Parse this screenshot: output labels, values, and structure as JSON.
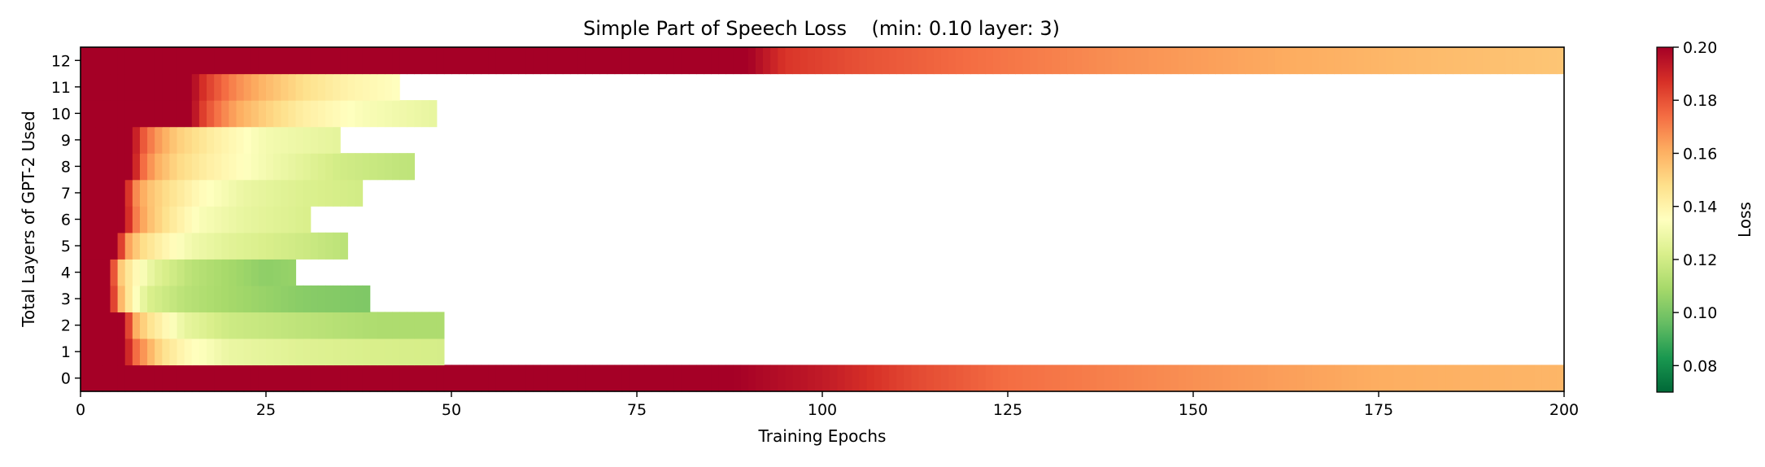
{
  "chart_data": {
    "type": "heatmap",
    "title": "Simple Part of Speech Loss    (min: 0.10 layer: 3)",
    "xlabel": "Training Epochs",
    "ylabel": "Total Layers of GPT-2 Used",
    "xlim": [
      0,
      200
    ],
    "ylim": [
      -0.5,
      12.5
    ],
    "x_ticks": [
      0,
      25,
      50,
      75,
      100,
      125,
      150,
      175,
      200
    ],
    "y_ticks": [
      0,
      1,
      2,
      3,
      4,
      5,
      6,
      7,
      8,
      9,
      10,
      11,
      12
    ],
    "colormap": "RdYlGn",
    "colorbar": {
      "label": "Loss",
      "range": [
        0.07,
        0.2
      ],
      "ticks": [
        0.08,
        0.1,
        0.12,
        0.14,
        0.16,
        0.18,
        0.2
      ],
      "tick_labels": [
        "0.08",
        "0.10",
        "0.12",
        "0.14",
        "0.16",
        "0.18",
        "0.20"
      ]
    },
    "rows": [
      {
        "layer": 0,
        "epochs": 200,
        "keypoints": [
          [
            0,
            0.2
          ],
          [
            88,
            0.2
          ],
          [
            100,
            0.193
          ],
          [
            112,
            0.182
          ],
          [
            125,
            0.174
          ],
          [
            150,
            0.167
          ],
          [
            175,
            0.161
          ],
          [
            200,
            0.159
          ]
        ]
      },
      {
        "layer": 1,
        "epochs": 49,
        "keypoints": [
          [
            0,
            0.2
          ],
          [
            6,
            0.2
          ],
          [
            7,
            0.178
          ],
          [
            9,
            0.162
          ],
          [
            11,
            0.148
          ],
          [
            14,
            0.138
          ],
          [
            20,
            0.128
          ],
          [
            30,
            0.124
          ],
          [
            40,
            0.122
          ],
          [
            49,
            0.121
          ]
        ]
      },
      {
        "layer": 2,
        "epochs": 49,
        "keypoints": [
          [
            0,
            0.2
          ],
          [
            6,
            0.2
          ],
          [
            7,
            0.165
          ],
          [
            9,
            0.148
          ],
          [
            11,
            0.14
          ],
          [
            14,
            0.127
          ],
          [
            20,
            0.119
          ],
          [
            30,
            0.115
          ],
          [
            40,
            0.111
          ],
          [
            49,
            0.111
          ]
        ]
      },
      {
        "layer": 3,
        "epochs": 39,
        "keypoints": [
          [
            0,
            0.2
          ],
          [
            4,
            0.2
          ],
          [
            5,
            0.165
          ],
          [
            7,
            0.138
          ],
          [
            9,
            0.123
          ],
          [
            14,
            0.114
          ],
          [
            20,
            0.109
          ],
          [
            30,
            0.103
          ],
          [
            39,
            0.101
          ]
        ]
      },
      {
        "layer": 4,
        "epochs": 29,
        "keypoints": [
          [
            0,
            0.2
          ],
          [
            4,
            0.2
          ],
          [
            5,
            0.158
          ],
          [
            7,
            0.14
          ],
          [
            10,
            0.125
          ],
          [
            15,
            0.114
          ],
          [
            20,
            0.109
          ],
          [
            25,
            0.104
          ],
          [
            29,
            0.106
          ]
        ]
      },
      {
        "layer": 5,
        "epochs": 36,
        "keypoints": [
          [
            0,
            0.2
          ],
          [
            5,
            0.2
          ],
          [
            6,
            0.167
          ],
          [
            8,
            0.15
          ],
          [
            11,
            0.14
          ],
          [
            15,
            0.13
          ],
          [
            20,
            0.125
          ],
          [
            30,
            0.119
          ],
          [
            36,
            0.114
          ]
        ]
      },
      {
        "layer": 6,
        "epochs": 31,
        "keypoints": [
          [
            0,
            0.2
          ],
          [
            6,
            0.2
          ],
          [
            7,
            0.175
          ],
          [
            9,
            0.158
          ],
          [
            12,
            0.145
          ],
          [
            16,
            0.133
          ],
          [
            22,
            0.127
          ],
          [
            31,
            0.122
          ]
        ]
      },
      {
        "layer": 7,
        "epochs": 38,
        "keypoints": [
          [
            0,
            0.2
          ],
          [
            6,
            0.2
          ],
          [
            7,
            0.172
          ],
          [
            9,
            0.157
          ],
          [
            12,
            0.147
          ],
          [
            16,
            0.137
          ],
          [
            22,
            0.128
          ],
          [
            30,
            0.123
          ],
          [
            38,
            0.12
          ]
        ]
      },
      {
        "layer": 8,
        "epochs": 45,
        "keypoints": [
          [
            0,
            0.2
          ],
          [
            7,
            0.2
          ],
          [
            8,
            0.178
          ],
          [
            10,
            0.162
          ],
          [
            13,
            0.15
          ],
          [
            17,
            0.142
          ],
          [
            25,
            0.131
          ],
          [
            35,
            0.12
          ],
          [
            45,
            0.115
          ]
        ]
      },
      {
        "layer": 9,
        "epochs": 35,
        "keypoints": [
          [
            0,
            0.2
          ],
          [
            7,
            0.2
          ],
          [
            8,
            0.182
          ],
          [
            10,
            0.167
          ],
          [
            13,
            0.153
          ],
          [
            18,
            0.142
          ],
          [
            25,
            0.131
          ],
          [
            35,
            0.126
          ]
        ]
      },
      {
        "layer": 10,
        "epochs": 48,
        "keypoints": [
          [
            0,
            0.2
          ],
          [
            15,
            0.2
          ],
          [
            16,
            0.187
          ],
          [
            18,
            0.175
          ],
          [
            21,
            0.162
          ],
          [
            25,
            0.152
          ],
          [
            30,
            0.142
          ],
          [
            38,
            0.133
          ],
          [
            48,
            0.127
          ]
        ]
      },
      {
        "layer": 11,
        "epochs": 43,
        "keypoints": [
          [
            0,
            0.2
          ],
          [
            15,
            0.2
          ],
          [
            16,
            0.19
          ],
          [
            18,
            0.18
          ],
          [
            21,
            0.168
          ],
          [
            25,
            0.158
          ],
          [
            30,
            0.148
          ],
          [
            36,
            0.14
          ],
          [
            43,
            0.135
          ]
        ]
      },
      {
        "layer": 12,
        "epochs": 200,
        "keypoints": [
          [
            0,
            0.2
          ],
          [
            90,
            0.2
          ],
          [
            95,
            0.186
          ],
          [
            105,
            0.18
          ],
          [
            120,
            0.174
          ],
          [
            140,
            0.167
          ],
          [
            160,
            0.162
          ],
          [
            180,
            0.158
          ],
          [
            200,
            0.155
          ]
        ]
      }
    ]
  }
}
